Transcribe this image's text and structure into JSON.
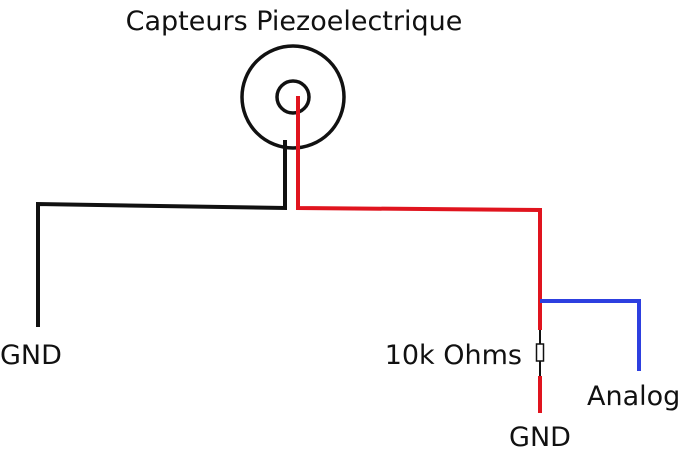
{
  "title": "Capteurs Piezoelectrique",
  "labels": {
    "gnd_left": "GND",
    "resistor": "10k Ohms",
    "gnd_right": "GND",
    "analog": "Analog"
  },
  "colors": {
    "black_wire": "#111111",
    "red_wire": "#e0141e",
    "blue_wire": "#2d3fe0",
    "outline": "#111111",
    "background": "#ffffff"
  },
  "icons": {
    "sensor": "piezo-disc-icon",
    "resistor": "resistor-icon"
  }
}
